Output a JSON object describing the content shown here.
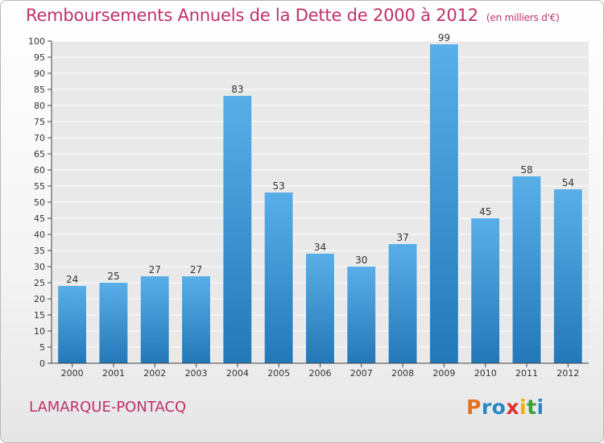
{
  "title": "Remboursements Annuels de la Dette de 2000 à 2012",
  "unit": "(en milliers d'€)",
  "commune": "LAMARQUE-PONTACQ",
  "logo": {
    "letters": [
      "P",
      "r",
      "o",
      "x",
      "i",
      "t",
      "i"
    ],
    "colors": [
      "#e8731e",
      "#2a86c8",
      "#2a86c8",
      "#e0312a",
      "#f0b000",
      "#3aa03a",
      "#2a86c8"
    ]
  },
  "colors": {
    "bar_light": "#5aaee8",
    "bar_dark": "#2478b8",
    "title": "#c0306a"
  },
  "chart_data": {
    "type": "bar",
    "categories": [
      "2000",
      "2001",
      "2002",
      "2003",
      "2004",
      "2005",
      "2006",
      "2007",
      "2008",
      "2009",
      "2010",
      "2011",
      "2012"
    ],
    "values": [
      24,
      25,
      27,
      27,
      83,
      53,
      34,
      30,
      37,
      99,
      45,
      58,
      54
    ],
    "ylim": [
      0,
      100
    ],
    "yticks": [
      0,
      5,
      10,
      15,
      20,
      25,
      30,
      35,
      40,
      45,
      50,
      55,
      60,
      65,
      70,
      75,
      80,
      85,
      90,
      95,
      100
    ],
    "grid": true,
    "xlabel": "",
    "ylabel": ""
  }
}
